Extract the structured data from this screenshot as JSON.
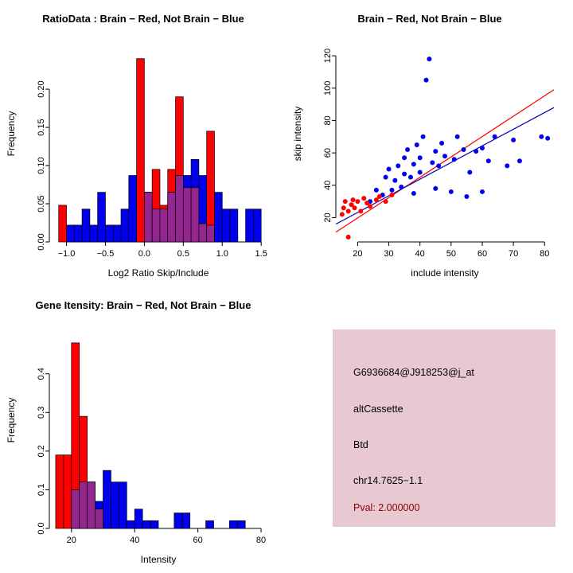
{
  "colors": {
    "red": "#ff0000",
    "blue": "#0000ee",
    "overlap": "#93278f",
    "line_red": "#ff0000",
    "line_blue": "#0000b0",
    "axis": "#000000",
    "info_bg": "#e8c9d2",
    "pval_red": "#8b0000"
  },
  "chart_data": [
    {
      "type": "bar",
      "title": "RatioData : Brain − Red, Not Brain − Blue",
      "xlabel": "Log2 Ratio Skip/Include",
      "ylabel": "Frequency",
      "xlim": [
        -1.22,
        1.58
      ],
      "ylim": [
        0,
        0.248
      ],
      "grid": false,
      "legend_position": "none",
      "xtick_vals": [
        -1.0,
        -0.5,
        0.0,
        0.5,
        1.0,
        1.5
      ],
      "xtick_labels": [
        "−1.0",
        "−0.5",
        "0.0",
        "0.5",
        "1.0",
        "1.5"
      ],
      "ytick_vals": [
        0.0,
        0.05,
        0.1,
        0.15,
        0.2
      ],
      "ytick_labels": [
        "0.00",
        "0.05",
        "0.10",
        "0.15",
        "0.20"
      ],
      "bin_width": 0.1,
      "overlap_color": "#93278f",
      "series": [
        {
          "name": "Not Brain (blue)",
          "color": "#0000ee",
          "bins": [
            [
              -1.0,
              0.022
            ],
            [
              -0.9,
              0.022
            ],
            [
              -0.8,
              0.043
            ],
            [
              -0.7,
              0.022
            ],
            [
              -0.6,
              0.065
            ],
            [
              -0.5,
              0.022
            ],
            [
              -0.4,
              0.022
            ],
            [
              -0.3,
              0.043
            ],
            [
              -0.2,
              0.087
            ],
            [
              0.0,
              0.065
            ],
            [
              0.1,
              0.043
            ],
            [
              0.2,
              0.043
            ],
            [
              0.3,
              0.065
            ],
            [
              0.4,
              0.087
            ],
            [
              0.5,
              0.087
            ],
            [
              0.6,
              0.108
            ],
            [
              0.7,
              0.087
            ],
            [
              0.8,
              0.022
            ],
            [
              0.9,
              0.065
            ],
            [
              1.0,
              0.043
            ],
            [
              1.1,
              0.043
            ],
            [
              1.3,
              0.043
            ],
            [
              1.4,
              0.043
            ]
          ]
        },
        {
          "name": "Brain (red)",
          "color": "#ff0000",
          "bins": [
            [
              -1.1,
              0.048
            ],
            [
              -0.1,
              0.24
            ],
            [
              0.0,
              0.065
            ],
            [
              0.1,
              0.095
            ],
            [
              0.2,
              0.048
            ],
            [
              0.3,
              0.095
            ],
            [
              0.4,
              0.19
            ],
            [
              0.5,
              0.071
            ],
            [
              0.6,
              0.071
            ],
            [
              0.7,
              0.024
            ],
            [
              0.8,
              0.145
            ]
          ]
        }
      ]
    },
    {
      "type": "scatter",
      "title": "Brain − Red, Not Brain − Blue",
      "xlabel": "include intensity",
      "ylabel": "skip intensity",
      "xlim": [
        13,
        83
      ],
      "ylim": [
        5,
        122
      ],
      "grid": false,
      "legend_position": "none",
      "xtick_vals": [
        20,
        30,
        40,
        50,
        60,
        70,
        80
      ],
      "xtick_labels": [
        "20",
        "30",
        "40",
        "50",
        "60",
        "70",
        "80"
      ],
      "ytick_vals": [
        20,
        40,
        60,
        80,
        100,
        120
      ],
      "ytick_labels": [
        "20",
        "40",
        "60",
        "80",
        "100",
        "120"
      ],
      "series": [
        {
          "name": "Not Brain (blue)",
          "color": "#0000ee",
          "points": [
            [
              24,
              30
            ],
            [
              26,
              37
            ],
            [
              28,
              34
            ],
            [
              29,
              45
            ],
            [
              30,
              50
            ],
            [
              31,
              37
            ],
            [
              32,
              43
            ],
            [
              33,
              52
            ],
            [
              34,
              39
            ],
            [
              35,
              57
            ],
            [
              35,
              47
            ],
            [
              36,
              62
            ],
            [
              37,
              45
            ],
            [
              38,
              53
            ],
            [
              38,
              35
            ],
            [
              39,
              65
            ],
            [
              40,
              57
            ],
            [
              40,
              48
            ],
            [
              41,
              70
            ],
            [
              42,
              105
            ],
            [
              43,
              118
            ],
            [
              44,
              54
            ],
            [
              45,
              61
            ],
            [
              45,
              38
            ],
            [
              46,
              52
            ],
            [
              47,
              66
            ],
            [
              48,
              58
            ],
            [
              50,
              36
            ],
            [
              51,
              56
            ],
            [
              52,
              70
            ],
            [
              54,
              62
            ],
            [
              55,
              33
            ],
            [
              56,
              48
            ],
            [
              58,
              61
            ],
            [
              60,
              36
            ],
            [
              60,
              63
            ],
            [
              62,
              55
            ],
            [
              64,
              70
            ],
            [
              68,
              52
            ],
            [
              70,
              68
            ],
            [
              72,
              55
            ],
            [
              79,
              70
            ],
            [
              81,
              69
            ]
          ]
        },
        {
          "name": "Brain (red)",
          "color": "#ff0000",
          "points": [
            [
              15,
              22
            ],
            [
              15.5,
              26
            ],
            [
              16,
              30
            ],
            [
              17,
              24
            ],
            [
              17,
              8
            ],
            [
              18,
              28
            ],
            [
              18.5,
              31
            ],
            [
              19,
              26
            ],
            [
              20,
              30
            ],
            [
              21,
              24
            ],
            [
              22,
              32
            ],
            [
              23,
              29
            ],
            [
              24,
              27
            ],
            [
              26,
              31
            ],
            [
              27,
              33
            ],
            [
              29,
              30
            ],
            [
              31,
              34
            ]
          ]
        }
      ],
      "lines": [
        {
          "name": "brain-fit",
          "color": "#ff0000",
          "x": [
            13,
            83
          ],
          "y": [
            11,
            99
          ]
        },
        {
          "name": "not-brain-fit",
          "color": "#0000b0",
          "x": [
            13,
            83
          ],
          "y": [
            16,
            88
          ]
        }
      ]
    },
    {
      "type": "bar",
      "title": "Gene Itensity: Brain − Red, Not Brain − Blue",
      "xlabel": "Intensity",
      "ylabel": "Frequency",
      "xlim": [
        13,
        82
      ],
      "ylim": [
        0,
        0.49
      ],
      "grid": false,
      "legend_position": "none",
      "xtick_vals": [
        20,
        40,
        60,
        80
      ],
      "xtick_labels": [
        "20",
        "40",
        "60",
        "80"
      ],
      "ytick_vals": [
        0.0,
        0.1,
        0.2,
        0.3,
        0.4
      ],
      "ytick_labels": [
        "0.0",
        "0.1",
        "0.2",
        "0.3",
        "0.4"
      ],
      "bin_width": 2.5,
      "overlap_color": "#93278f",
      "series": [
        {
          "name": "Not Brain (blue)",
          "color": "#0000ee",
          "bins": [
            [
              20,
              0.1
            ],
            [
              22.5,
              0.12
            ],
            [
              25,
              0.12
            ],
            [
              27.5,
              0.07
            ],
            [
              30,
              0.15
            ],
            [
              32.5,
              0.12
            ],
            [
              35,
              0.12
            ],
            [
              37.5,
              0.02
            ],
            [
              40,
              0.05
            ],
            [
              42.5,
              0.02
            ],
            [
              45,
              0.02
            ],
            [
              52.5,
              0.04
            ],
            [
              55,
              0.04
            ],
            [
              62.5,
              0.02
            ],
            [
              70,
              0.02
            ],
            [
              72.5,
              0.02
            ]
          ]
        },
        {
          "name": "Brain (red)",
          "color": "#ff0000",
          "bins": [
            [
              15,
              0.19
            ],
            [
              17.5,
              0.19
            ],
            [
              20,
              0.48
            ],
            [
              22.5,
              0.29
            ],
            [
              25,
              0.12
            ],
            [
              27.5,
              0.05
            ]
          ]
        }
      ]
    }
  ],
  "info_panel": {
    "bg_color": "#e8c9d2",
    "lines": [
      {
        "name": "probe-id",
        "text": "G6936684@J918253@j_at",
        "color": "#000000"
      },
      {
        "name": "event-type",
        "text": "altCassette",
        "color": "#000000"
      },
      {
        "name": "gene-symbol",
        "text": "Btd",
        "color": "#000000"
      },
      {
        "name": "genomic-location",
        "text": "chr14.7625−1.1",
        "color": "#000000"
      },
      {
        "name": "pvalue",
        "text": "Pval: 2.000000",
        "color": "#8b0000"
      }
    ]
  }
}
